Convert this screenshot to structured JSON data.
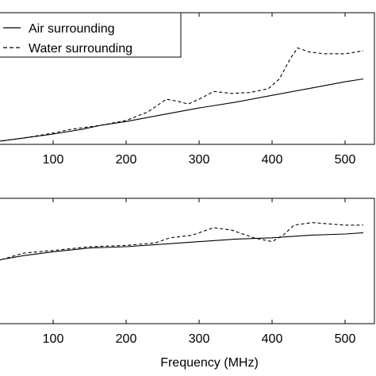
{
  "chart_data": [
    {
      "type": "line",
      "xlim": [
        0,
        525
      ],
      "ylim": [
        0,
        1
      ],
      "xticks": [
        100,
        200,
        300,
        400,
        500
      ],
      "legend": {
        "placement": "top-left",
        "position": "inside"
      },
      "grid": false,
      "series": [
        {
          "name": "Air surrounding",
          "style": "solid",
          "x": [
            0,
            30,
            60,
            100,
            140,
            165,
            200,
            250,
            300,
            350,
            400,
            450,
            500,
            525
          ],
          "y": [
            0.0,
            0.02,
            0.05,
            0.09,
            0.14,
            0.18,
            0.22,
            0.29,
            0.36,
            0.42,
            0.49,
            0.56,
            0.63,
            0.66
          ]
        },
        {
          "name": "Water surrounding",
          "style": "dashed",
          "x": [
            0,
            30,
            60,
            100,
            125,
            165,
            200,
            230,
            255,
            270,
            285,
            300,
            320,
            345,
            370,
            395,
            410,
            425,
            435,
            450,
            470,
            500,
            525
          ],
          "y": [
            0.0,
            0.02,
            0.05,
            0.1,
            0.14,
            0.18,
            0.23,
            0.32,
            0.45,
            0.43,
            0.4,
            0.45,
            0.53,
            0.51,
            0.52,
            0.56,
            0.66,
            0.87,
            0.98,
            0.94,
            0.92,
            0.92,
            0.95
          ]
        }
      ]
    },
    {
      "type": "line",
      "xlabel": "Frequency (MHz)",
      "xlim": [
        0,
        525
      ],
      "ylim": [
        0,
        1
      ],
      "xticks": [
        100,
        200,
        300,
        400,
        500
      ],
      "grid": false,
      "series": [
        {
          "name": "Air surrounding",
          "style": "solid",
          "x": [
            0,
            30,
            60,
            100,
            150,
            200,
            250,
            300,
            350,
            400,
            450,
            500,
            525
          ],
          "y": [
            0.5,
            0.55,
            0.58,
            0.61,
            0.64,
            0.65,
            0.67,
            0.69,
            0.71,
            0.72,
            0.74,
            0.75,
            0.76
          ]
        },
        {
          "name": "Water surrounding",
          "style": "dashed",
          "x": [
            0,
            30,
            60,
            100,
            150,
            200,
            240,
            260,
            290,
            320,
            345,
            375,
            400,
            415,
            430,
            455,
            500,
            525
          ],
          "y": [
            0.5,
            0.55,
            0.6,
            0.62,
            0.65,
            0.66,
            0.68,
            0.72,
            0.74,
            0.8,
            0.78,
            0.72,
            0.69,
            0.74,
            0.82,
            0.84,
            0.82,
            0.82
          ]
        }
      ]
    }
  ]
}
